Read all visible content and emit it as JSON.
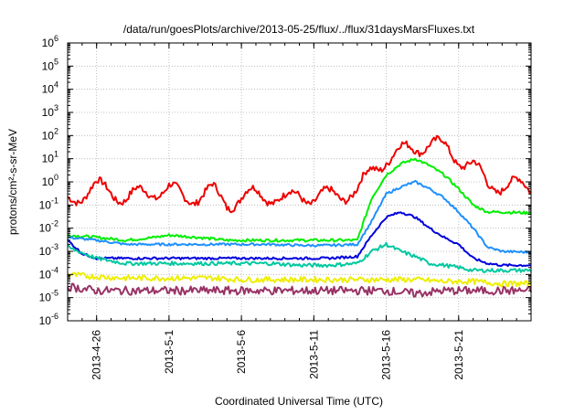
{
  "chart_data": {
    "type": "line",
    "title": "/data/run/goesPlots/archive/2013-05-25/flux/../flux/31daysMarsFluxes.txt",
    "xlabel": "Coordinated Universal Time (UTC)",
    "ylabel": "protons/cm²-s-sr-MeV",
    "yscale": "log",
    "ylim": [
      1e-06,
      1000000.0
    ],
    "xlim": [
      "2013-04-24",
      "2013-05-26"
    ],
    "grid": true,
    "xticks": [
      {
        "date": "2013-04-26",
        "label": "2013-4-26"
      },
      {
        "date": "2013-05-01",
        "label": "2013-5-1"
      },
      {
        "date": "2013-05-06",
        "label": "2013-5-6"
      },
      {
        "date": "2013-05-11",
        "label": "2013-5-11"
      },
      {
        "date": "2013-05-16",
        "label": "2013-5-16"
      },
      {
        "date": "2013-05-21",
        "label": "2013-5-21"
      }
    ],
    "yticks": [
      {
        "value": 1e-06,
        "base": "10",
        "exp": "-6"
      },
      {
        "value": 1e-05,
        "base": "10",
        "exp": "-5"
      },
      {
        "value": 0.0001,
        "base": "10",
        "exp": "-4"
      },
      {
        "value": 0.001,
        "base": "10",
        "exp": "-3"
      },
      {
        "value": 0.01,
        "base": "10",
        "exp": "-2"
      },
      {
        "value": 0.1,
        "base": "10",
        "exp": "-1"
      },
      {
        "value": 1,
        "base": "10",
        "exp": "0"
      },
      {
        "value": 10,
        "base": "10",
        "exp": "1"
      },
      {
        "value": 100,
        "base": "10",
        "exp": "2"
      },
      {
        "value": 1000,
        "base": "10",
        "exp": "3"
      },
      {
        "value": 10000,
        "base": "10",
        "exp": "4"
      },
      {
        "value": 100000,
        "base": "10",
        "exp": "5"
      },
      {
        "value": 1000000,
        "base": "10",
        "exp": "6"
      }
    ],
    "series": [
      {
        "color": "#ee0000",
        "x": [
          "2013-04-24",
          "2013-04-25",
          "2013-04-26",
          "2013-04-27",
          "2013-04-28",
          "2013-04-29",
          "2013-04-30",
          "2013-05-01",
          "2013-05-02",
          "2013-05-03",
          "2013-05-04",
          "2013-05-05",
          "2013-05-06",
          "2013-05-07",
          "2013-05-08",
          "2013-05-09",
          "2013-05-10",
          "2013-05-11",
          "2013-05-12",
          "2013-05-13",
          "2013-05-14",
          "2013-05-15",
          "2013-05-16",
          "2013-05-17",
          "2013-05-18",
          "2013-05-19",
          "2013-05-20",
          "2013-05-21",
          "2013-05-22",
          "2013-05-23",
          "2013-05-24",
          "2013-05-25",
          "2013-05-26"
        ],
        "y": [
          0.15,
          0.3,
          0.6,
          0.4,
          0.2,
          0.3,
          0.4,
          0.5,
          0.2,
          0.25,
          0.4,
          0.12,
          0.2,
          0.3,
          0.25,
          0.15,
          0.3,
          0.2,
          0.25,
          0.3,
          0.4,
          3,
          10,
          20,
          30,
          50,
          30,
          10,
          5,
          0.8,
          0.7,
          0.7,
          0.6
        ]
      },
      {
        "color": "#00ee00",
        "x": [
          "2013-04-24",
          "2013-04-26",
          "2013-04-28",
          "2013-04-30",
          "2013-05-01",
          "2013-05-03",
          "2013-05-05",
          "2013-05-07",
          "2013-05-09",
          "2013-05-11",
          "2013-05-13",
          "2013-05-14",
          "2013-05-15",
          "2013-05-16",
          "2013-05-17",
          "2013-05-18",
          "2013-05-19",
          "2013-05-20",
          "2013-05-21",
          "2013-05-22",
          "2013-05-23",
          "2013-05-24",
          "2013-05-26"
        ],
        "y": [
          0.005,
          0.004,
          0.003,
          0.004,
          0.005,
          0.004,
          0.003,
          0.003,
          0.003,
          0.003,
          0.003,
          0.003,
          0.2,
          2,
          6,
          10,
          5,
          2,
          0.5,
          0.1,
          0.05,
          0.05,
          0.045
        ]
      },
      {
        "color": "#1e90ff",
        "x": [
          "2013-04-24",
          "2013-04-26",
          "2013-04-28",
          "2013-04-30",
          "2013-05-02",
          "2013-05-04",
          "2013-05-06",
          "2013-05-08",
          "2013-05-10",
          "2013-05-12",
          "2013-05-14",
          "2013-05-15",
          "2013-05-16",
          "2013-05-17",
          "2013-05-18",
          "2013-05-19",
          "2013-05-20",
          "2013-05-21",
          "2013-05-22",
          "2013-05-23",
          "2013-05-24",
          "2013-05-26"
        ],
        "y": [
          0.004,
          0.003,
          0.002,
          0.002,
          0.002,
          0.002,
          0.002,
          0.002,
          0.0018,
          0.0018,
          0.002,
          0.02,
          0.3,
          0.6,
          1,
          0.5,
          0.2,
          0.05,
          0.01,
          0.0015,
          0.001,
          0.0009
        ]
      },
      {
        "color": "#0000dd",
        "x": [
          "2013-04-24",
          "2013-04-25",
          "2013-04-26",
          "2013-04-28",
          "2013-04-30",
          "2013-05-02",
          "2013-05-04",
          "2013-05-06",
          "2013-05-08",
          "2013-05-10",
          "2013-05-12",
          "2013-05-14",
          "2013-05-15",
          "2013-05-16",
          "2013-05-17",
          "2013-05-18",
          "2013-05-19",
          "2013-05-20",
          "2013-05-21",
          "2013-05-22",
          "2013-05-23",
          "2013-05-24",
          "2013-05-26"
        ],
        "y": [
          0.003,
          0.0008,
          0.0005,
          0.0005,
          0.0005,
          0.0005,
          0.0005,
          0.0005,
          0.0005,
          0.0005,
          0.0005,
          0.0006,
          0.005,
          0.03,
          0.05,
          0.03,
          0.01,
          0.004,
          0.002,
          0.0005,
          0.0003,
          0.00025,
          0.00025
        ]
      },
      {
        "color": "#00c8a0",
        "x": [
          "2013-04-24",
          "2013-04-26",
          "2013-04-28",
          "2013-04-30",
          "2013-05-02",
          "2013-05-04",
          "2013-05-06",
          "2013-05-08",
          "2013-05-10",
          "2013-05-12",
          "2013-05-14",
          "2013-05-15",
          "2013-05-16",
          "2013-05-17",
          "2013-05-18",
          "2013-05-19",
          "2013-05-20",
          "2013-05-21",
          "2013-05-22",
          "2013-05-23",
          "2013-05-24",
          "2013-05-26"
        ],
        "y": [
          0.0015,
          0.0005,
          0.0003,
          0.0003,
          0.0003,
          0.0003,
          0.0003,
          0.0003,
          0.00025,
          0.00025,
          0.0003,
          0.001,
          0.002,
          0.001,
          0.0006,
          0.0003,
          0.00025,
          0.0002,
          0.00015,
          0.00015,
          0.00015,
          0.00015
        ]
      },
      {
        "color": "#eeee00",
        "x": [
          "2013-04-24",
          "2013-04-26",
          "2013-04-28",
          "2013-04-30",
          "2013-05-02",
          "2013-05-04",
          "2013-05-06",
          "2013-05-08",
          "2013-05-10",
          "2013-05-12",
          "2013-05-14",
          "2013-05-16",
          "2013-05-18",
          "2013-05-20",
          "2013-05-22",
          "2013-05-24",
          "2013-05-26"
        ],
        "y": [
          0.0001,
          8e-05,
          7e-05,
          7e-05,
          7e-05,
          7e-05,
          6e-05,
          6e-05,
          6e-05,
          6e-05,
          6e-05,
          6e-05,
          6e-05,
          5e-05,
          5e-05,
          4e-05,
          4e-05
        ]
      },
      {
        "color": "#993366",
        "x": [
          "2013-04-24",
          "2013-04-26",
          "2013-04-28",
          "2013-04-30",
          "2013-05-02",
          "2013-05-04",
          "2013-05-06",
          "2013-05-08",
          "2013-05-10",
          "2013-05-12",
          "2013-05-14",
          "2013-05-16",
          "2013-05-18",
          "2013-05-20",
          "2013-05-22",
          "2013-05-24",
          "2013-05-26"
        ],
        "y": [
          3e-05,
          2e-05,
          2e-05,
          2e-05,
          2e-05,
          2e-05,
          2e-05,
          2e-05,
          2e-05,
          2e-05,
          2e-05,
          2e-05,
          1.5e-05,
          2e-05,
          2e-05,
          2e-05,
          2e-05
        ]
      }
    ]
  }
}
